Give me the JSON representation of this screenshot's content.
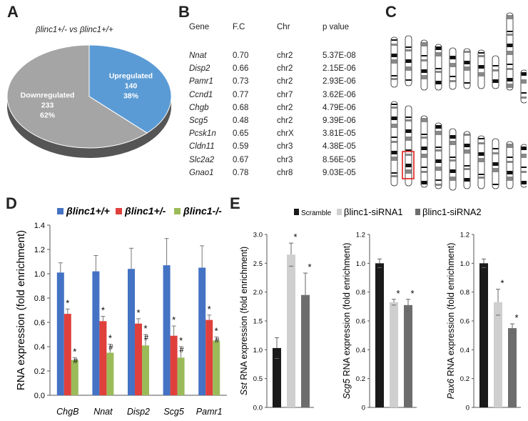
{
  "panels": {
    "A": {
      "letter": "A",
      "title": "βlinc1+/- vs βlinc1+/+",
      "slices": [
        {
          "label": "Upregulated",
          "count": "140",
          "pct": "38%",
          "value": 140,
          "color": "#5b9bd5"
        },
        {
          "label": "Downregulated",
          "count": "233",
          "pct": "62%",
          "value": 233,
          "color": "#a5a5a5"
        }
      ]
    },
    "B": {
      "letter": "B",
      "headers": [
        "Gene",
        "F.C",
        "Chr",
        "p value"
      ],
      "rows": [
        [
          "Nnat",
          "0.70",
          "chr2",
          "5.37E-08"
        ],
        [
          "Disp2",
          "0.66",
          "chr2",
          "2.15E-06"
        ],
        [
          "Pamr1",
          "0.73",
          "chr2",
          "2.93E-06"
        ],
        [
          "Ccnd1",
          "0.77",
          "chr7",
          "3.62E-06"
        ],
        [
          "Chgb",
          "0.68",
          "chr2",
          "4.79E-06"
        ],
        [
          "Scg5",
          "0.48",
          "chr2",
          "9.39E-06"
        ],
        [
          "Pcsk1n",
          "0.65",
          "chrX",
          "3.81E-05"
        ],
        [
          "Cldn11",
          "0.59",
          "chr3",
          "4.38E-05"
        ],
        [
          "Slc2a2",
          "0.67",
          "chr3",
          "8.56E-05"
        ],
        [
          "Gnao1",
          "0.78",
          "chr8",
          "9.03E-05"
        ]
      ]
    },
    "C": {
      "letter": "C"
    },
    "D": {
      "letter": "D"
    },
    "E": {
      "letter": "E"
    }
  },
  "chart_data": [
    {
      "type": "pie",
      "categories": [
        "Upregulated",
        "Downregulated"
      ],
      "values": [
        140,
        233
      ]
    },
    {
      "type": "bar",
      "ylabel": "RNA expression (fold enrichment)",
      "categories": [
        "ChgB",
        "Nnat",
        "Disp2",
        "Scg5",
        "Pamr1"
      ],
      "ylim": [
        0,
        1.4
      ],
      "yticks": [
        "0.0",
        "0.2",
        "0.4",
        "0.6",
        "0.8",
        "1.0",
        "1.2",
        "1.4"
      ],
      "legend_position": "top",
      "series": [
        {
          "name": "βlinc1+/+",
          "color": "#4472c4",
          "values": [
            1.01,
            1.02,
            1.04,
            1.07,
            1.05
          ],
          "errors": [
            0.08,
            0.13,
            0.17,
            0.22,
            0.18
          ],
          "marks": [
            "",
            "",
            "",
            "",
            ""
          ]
        },
        {
          "name": "βlinc1+/-",
          "color": "#e0403c",
          "values": [
            0.67,
            0.61,
            0.59,
            0.49,
            0.62
          ],
          "errors": [
            0.04,
            0.04,
            0.04,
            0.08,
            0.04
          ],
          "marks": [
            "*",
            "*",
            "*",
            "*",
            "*"
          ]
        },
        {
          "name": "βlinc1-/-",
          "color": "#9bbb59",
          "values": [
            0.29,
            0.35,
            0.41,
            0.31,
            0.45
          ],
          "errors": [
            0.02,
            0.07,
            0.09,
            0.09,
            0.03
          ],
          "marks": [
            "*#",
            "*#",
            "*#",
            "*#",
            "*#"
          ]
        }
      ]
    },
    {
      "type": "bar",
      "legend": [
        "Scramble",
        "βlinc1-siRNA1",
        "βlinc1-siRNA2"
      ],
      "colors": [
        "#1a1a1a",
        "#cfcfcf",
        "#6d6d6d"
      ],
      "subplots": [
        {
          "gene": "Sst",
          "ylabel_rest": " RNA expression (fold enrichment)",
          "ylim": [
            0,
            3.0
          ],
          "yticks": [
            "0.0",
            "0.5",
            "1.0",
            "1.5",
            "2.0",
            "2.5",
            "3.0"
          ],
          "values": [
            1.03,
            2.65,
            1.95
          ],
          "errors": [
            0.18,
            0.2,
            0.38
          ],
          "marks": [
            "",
            "*",
            "*"
          ]
        },
        {
          "gene": "Scg5",
          "ylabel_rest": " RNA expression (fold enrichment)",
          "ylim": [
            0,
            1.2
          ],
          "yticks": [
            "0",
            "0.2",
            "0.4",
            "0.6",
            "0.8",
            "1.0",
            "1.2"
          ],
          "values": [
            1.0,
            0.73,
            0.71
          ],
          "errors": [
            0.03,
            0.02,
            0.04
          ],
          "marks": [
            "",
            "*",
            "*"
          ]
        },
        {
          "gene": "Pax6",
          "ylabel_rest": " RNA expression (fold enrichment)",
          "ylim": [
            0,
            1.2
          ],
          "yticks": [
            "0",
            "0.2",
            "0.4",
            "0.6",
            "0.8",
            "1.0",
            "1.2"
          ],
          "values": [
            1.0,
            0.73,
            0.55
          ],
          "errors": [
            0.03,
            0.09,
            0.03
          ],
          "marks": [
            "",
            "*",
            "*"
          ]
        }
      ]
    }
  ]
}
